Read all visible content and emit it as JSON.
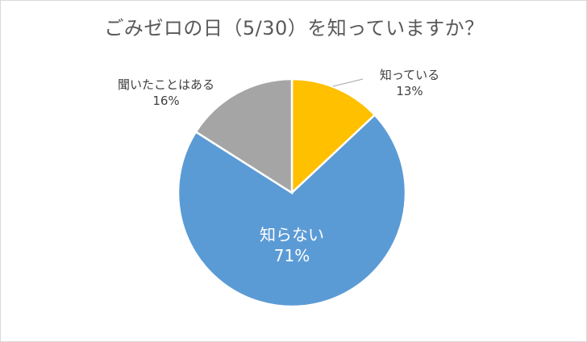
{
  "chart_data": {
    "type": "pie",
    "title": "ごみゼロの日（5/30）を知っていますか？",
    "slices": [
      {
        "label": "知っている",
        "value": 13,
        "value_label": "13%",
        "color": "#FFC000"
      },
      {
        "label": "知らない",
        "value": 71,
        "value_label": "71%",
        "color": "#5B9BD5"
      },
      {
        "label": "聞いたことはある",
        "value": 16,
        "value_label": "16%",
        "color": "#A5A5A5"
      }
    ],
    "legend": "none",
    "start_angle": "12 o'clock, clockwise",
    "data_labels": "category name and percentage"
  }
}
